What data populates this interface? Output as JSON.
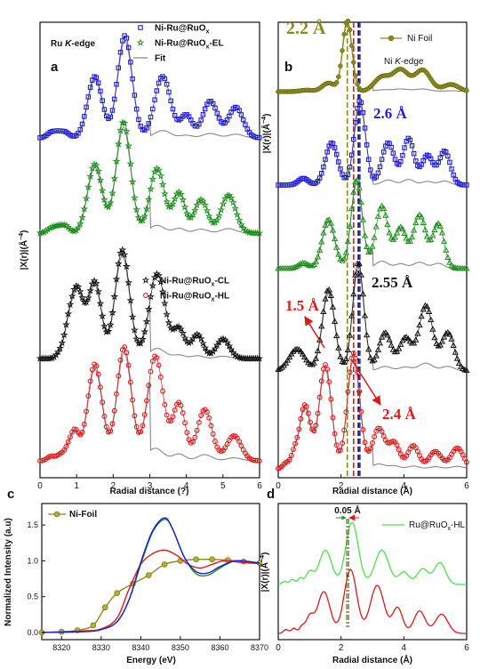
{
  "chart_data": [
    {
      "panel": "a",
      "type": "line",
      "edge_label_prefix": "Ru",
      "edge_label_italic": "K",
      "edge_label_suffix": "-edge",
      "xlabel": "Radial distance (?)",
      "ylabel": "|X(r)|(Å",
      "ylabel_sup": "−4",
      "ylabel_tail": ")",
      "xlim": [
        0,
        6
      ],
      "xticks": [
        "0",
        "1",
        "2",
        "3",
        "4",
        "5",
        "6"
      ],
      "legend_top": [
        {
          "label": "Ni-Ru@RuO",
          "sub": "x",
          "marker": "square",
          "color": "#1f1fd6"
        },
        {
          "label": "Ni-Ru@RuO",
          "sub": "x",
          "suffix": "-EL",
          "marker": "star",
          "color": "#1a8f1a"
        },
        {
          "label": "Fit",
          "marker": "line",
          "color": "#888888"
        }
      ],
      "legend_mid": [
        {
          "label": "Ni-Ru@RuO",
          "sub": "x",
          "suffix": "-CL",
          "marker": "star",
          "color": "#111111"
        },
        {
          "label": "Ni-Ru@RuO",
          "sub": "x",
          "suffix": "-HL",
          "marker": "circle",
          "color": "#e01818"
        }
      ],
      "series": [
        {
          "color": "#1f1fd6",
          "marker": "square",
          "peaks": [
            [
              0.3,
              0.05,
              0.11
            ],
            [
              0.5,
              0.05,
              0.11
            ],
            [
              0.7,
              0.05,
              0.11
            ],
            [
              1.5,
              0.6,
              0.2
            ],
            [
              2.32,
              1.0,
              0.2
            ],
            [
              3.35,
              0.6,
              0.22
            ],
            [
              4.0,
              0.22,
              0.16
            ],
            [
              4.65,
              0.36,
              0.2
            ],
            [
              5.35,
              0.3,
              0.2
            ]
          ]
        },
        {
          "color": "#1a8f1a",
          "marker": "star",
          "peaks": [
            [
              0.3,
              0.04,
              0.11
            ],
            [
              0.5,
              0.05,
              0.11
            ],
            [
              0.7,
              0.06,
              0.11
            ],
            [
              1.5,
              0.62,
              0.2
            ],
            [
              2.28,
              1.0,
              0.2
            ],
            [
              3.2,
              0.58,
              0.2
            ],
            [
              3.8,
              0.36,
              0.16
            ],
            [
              4.4,
              0.3,
              0.18
            ],
            [
              5.15,
              0.34,
              0.2
            ]
          ]
        },
        {
          "color": "#111111",
          "marker": "star",
          "peaks": [
            [
              0.55,
              0.05,
              0.1
            ],
            [
              0.75,
              0.12,
              0.1
            ],
            [
              1.0,
              0.65,
              0.18
            ],
            [
              1.5,
              0.7,
              0.18
            ],
            [
              2.25,
              1.0,
              0.2
            ],
            [
              3.2,
              0.78,
              0.22
            ],
            [
              3.8,
              0.27,
              0.16
            ],
            [
              4.3,
              0.22,
              0.16
            ],
            [
              5.0,
              0.18,
              0.18
            ]
          ]
        },
        {
          "color": "#e01818",
          "marker": "circle",
          "peaks": [
            [
              0.3,
              0.04,
              0.1
            ],
            [
              0.55,
              0.05,
              0.1
            ],
            [
              0.75,
              0.08,
              0.1
            ],
            [
              0.95,
              0.25,
              0.12
            ],
            [
              1.5,
              0.85,
              0.2
            ],
            [
              2.3,
              1.0,
              0.2
            ],
            [
              3.15,
              0.92,
              0.22
            ],
            [
              3.8,
              0.5,
              0.17
            ],
            [
              4.5,
              0.45,
              0.2
            ],
            [
              5.3,
              0.22,
              0.2
            ]
          ]
        }
      ]
    },
    {
      "panel": "b",
      "type": "line",
      "xlabel": "Radial distance (Å)",
      "ylabel": "|X(r)|(Å",
      "ylabel_sup": "−4",
      "ylabel_tail": ")",
      "xlim": [
        0,
        6
      ],
      "xticks": [
        "0",
        "2",
        "4",
        "6"
      ],
      "edge_label_prefix": "Ni",
      "edge_label_italic": "K",
      "edge_label_suffix": "-edge",
      "legend": [
        {
          "label": "Ni Foil",
          "marker": "circle-line",
          "color": "#8b8b1a"
        }
      ],
      "annotations": [
        "2.2 Å",
        "2.6 Å",
        "2.55 Å",
        "1.5 Å",
        "2.4 Å"
      ],
      "vlines": [
        {
          "x": 2.2,
          "color": "#8b8b1a"
        },
        {
          "x": 2.4,
          "color": "#e01818"
        },
        {
          "x": 2.55,
          "color": "#111111"
        },
        {
          "x": 2.6,
          "color": "#1f1fd6"
        }
      ],
      "series": [
        {
          "color": "#8b8b1a",
          "marker": "circle-line",
          "peaks": [
            [
              0.9,
              0.02,
              0.2
            ],
            [
              1.6,
              0.12,
              0.2
            ],
            [
              2.2,
              1.0,
              0.15
            ],
            [
              3.3,
              0.2,
              0.25
            ],
            [
              3.9,
              0.3,
              0.25
            ],
            [
              4.6,
              0.3,
              0.25
            ],
            [
              5.5,
              0.1,
              0.25
            ]
          ]
        },
        {
          "color": "#1f1fd6",
          "marker": "square",
          "peaks": [
            [
              0.8,
              0.08,
              0.16
            ],
            [
              1.7,
              0.5,
              0.2
            ],
            [
              2.6,
              1.0,
              0.18
            ],
            [
              3.5,
              0.5,
              0.2
            ],
            [
              4.15,
              0.55,
              0.18
            ],
            [
              4.75,
              0.35,
              0.18
            ],
            [
              5.3,
              0.4,
              0.18
            ]
          ]
        },
        {
          "color": "#1a8f1a",
          "marker": "triangle",
          "peaks": [
            [
              0.8,
              0.06,
              0.16
            ],
            [
              1.6,
              0.55,
              0.2
            ],
            [
              2.5,
              1.0,
              0.18
            ],
            [
              3.3,
              0.7,
              0.2
            ],
            [
              3.9,
              0.45,
              0.18
            ],
            [
              4.5,
              0.6,
              0.2
            ],
            [
              5.1,
              0.5,
              0.18
            ]
          ]
        },
        {
          "color": "#111111",
          "marker": "triangle",
          "peaks": [
            [
              0.6,
              0.2,
              0.25
            ],
            [
              1.6,
              0.75,
              0.2
            ],
            [
              2.55,
              1.0,
              0.18
            ],
            [
              3.4,
              0.35,
              0.2
            ],
            [
              4.05,
              0.3,
              0.2
            ],
            [
              4.7,
              0.6,
              0.22
            ],
            [
              5.4,
              0.35,
              0.2
            ]
          ]
        },
        {
          "color": "#e01818",
          "marker": "circle",
          "peaks": [
            [
              0.25,
              0.05,
              0.1
            ],
            [
              0.5,
              0.1,
              0.1
            ],
            [
              0.85,
              0.55,
              0.18
            ],
            [
              1.5,
              0.9,
              0.2
            ],
            [
              2.4,
              1.0,
              0.2
            ],
            [
              3.2,
              0.35,
              0.2
            ],
            [
              3.7,
              0.22,
              0.17
            ],
            [
              4.3,
              0.2,
              0.18
            ],
            [
              5.0,
              0.15,
              0.2
            ],
            [
              5.7,
              0.18,
              0.2
            ]
          ]
        }
      ]
    },
    {
      "panel": "c",
      "type": "line",
      "xlabel": "Energy (eV)",
      "ylabel": "Normalized Intensity (a.u)",
      "xlim": [
        8315,
        8370
      ],
      "ylim": [
        -0.1,
        1.8
      ],
      "xticks": [
        "8320",
        "8330",
        "8340",
        "8350",
        "8360",
        "8370"
      ],
      "yticks": [
        "0.0",
        "0.5",
        "1.0",
        "1.5"
      ],
      "legend": [
        {
          "label": "Ni-Foil",
          "marker": "circle-line",
          "color": "#8b8b1a"
        }
      ],
      "series": [
        {
          "color": "#8b8b1a",
          "marker": "circle-line",
          "label": "Ni-Foil",
          "x": [
            8315,
            8320,
            8324,
            8328,
            8331,
            8334,
            8338,
            8342,
            8346,
            8350,
            8354,
            8358,
            8362,
            8366,
            8370
          ],
          "y": [
            0.0,
            0.01,
            0.03,
            0.1,
            0.35,
            0.55,
            0.68,
            0.8,
            0.95,
            1.0,
            1.02,
            1.02,
            1.01,
            0.99,
            0.97
          ]
        },
        {
          "color": "#e01818",
          "marker": "line",
          "x": [
            8315,
            8325,
            8330,
            8334,
            8337,
            8340,
            8343,
            8346,
            8349,
            8352,
            8355,
            8358,
            8361,
            8365,
            8370
          ],
          "y": [
            0.0,
            0.02,
            0.05,
            0.2,
            0.6,
            0.95,
            1.1,
            1.15,
            1.08,
            0.95,
            0.9,
            0.95,
            1.0,
            0.98,
            0.96
          ]
        },
        {
          "color": "#1a8f1a",
          "marker": "line",
          "x": [
            8315,
            8325,
            8330,
            8334,
            8337,
            8340,
            8343,
            8346,
            8348,
            8351,
            8354,
            8357,
            8360,
            8364,
            8370
          ],
          "y": [
            0.0,
            0.01,
            0.04,
            0.15,
            0.45,
            0.95,
            1.4,
            1.58,
            1.45,
            1.05,
            0.82,
            0.8,
            0.9,
            1.0,
            0.97
          ]
        },
        {
          "color": "#1f1fd6",
          "marker": "line",
          "x": [
            8315,
            8325,
            8330,
            8334,
            8337,
            8340,
            8343,
            8346,
            8348,
            8351,
            8354,
            8357,
            8360,
            8364,
            8370
          ],
          "y": [
            0.0,
            0.01,
            0.04,
            0.15,
            0.45,
            0.98,
            1.42,
            1.6,
            1.45,
            1.05,
            0.85,
            0.83,
            0.92,
            1.0,
            0.97
          ]
        }
      ]
    },
    {
      "panel": "d",
      "type": "line",
      "xlabel": "Radial distance (Å)",
      "ylabel": "|X(r)|(Å",
      "ylabel_sup": "−4",
      "ylabel_tail": ")",
      "xlim": [
        0,
        6
      ],
      "xticks": [
        "0",
        "2",
        "4",
        "6"
      ],
      "legend": [
        {
          "label": "Ru@RuO",
          "sub": "x",
          "suffix": "-HL",
          "marker": "line",
          "color": "#4ee04e"
        }
      ],
      "annotations": [
        "0.05 Å"
      ],
      "series": [
        {
          "color": "#4ee04e",
          "marker": "line",
          "peaks": [
            [
              0.2,
              0.05,
              0.08
            ],
            [
              0.45,
              0.08,
              0.08
            ],
            [
              0.7,
              0.1,
              0.08
            ],
            [
              1.0,
              0.2,
              0.12
            ],
            [
              1.5,
              0.55,
              0.2
            ],
            [
              2.35,
              1.0,
              0.2
            ],
            [
              3.3,
              0.55,
              0.22
            ],
            [
              4.0,
              0.2,
              0.16
            ],
            [
              4.6,
              0.25,
              0.18
            ],
            [
              5.15,
              0.35,
              0.18
            ]
          ]
        },
        {
          "color": "#e01818",
          "marker": "line",
          "peaks": [
            [
              0.25,
              0.06,
              0.08
            ],
            [
              0.5,
              0.08,
              0.08
            ],
            [
              0.75,
              0.1,
              0.08
            ],
            [
              1.0,
              0.25,
              0.12
            ],
            [
              1.45,
              0.65,
              0.2
            ],
            [
              2.3,
              1.0,
              0.2
            ],
            [
              3.15,
              0.75,
              0.22
            ],
            [
              3.8,
              0.4,
              0.16
            ],
            [
              4.5,
              0.35,
              0.18
            ],
            [
              5.2,
              0.3,
              0.2
            ]
          ]
        }
      ]
    }
  ]
}
